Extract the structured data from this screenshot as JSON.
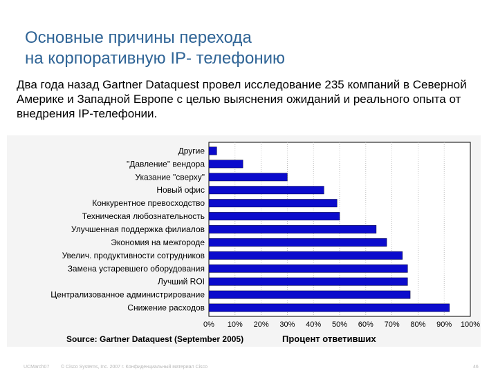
{
  "slide": {
    "title_line1": "Основные причины перехода",
    "title_line2": "на корпоративную IP- телефонию",
    "body": "Два года назад Gartner Dataquest провел исследование 235 компаний в Северной  Америке и Западной Европе с целью выяснения ожиданий и реального опыта от внедрения IP-телефонии."
  },
  "chart_data": {
    "type": "bar",
    "orientation": "horizontal",
    "categories": [
      "Другие",
      "\"Давление\" вендора",
      "Указание \"сверху\"",
      "Новый офис",
      "Конкурентное превосходство",
      "Техническая любознательность",
      "Улучшенная поддержка филиалов",
      "Экономия на межгороде",
      "Увелич. продуктивности сотрудников",
      "Замена устаревшего оборудования",
      "Лучший ROI",
      "Централизованное администрирование",
      "Снижение расходов"
    ],
    "values": [
      3,
      13,
      30,
      44,
      49,
      50,
      64,
      68,
      74,
      76,
      76,
      77,
      92
    ],
    "xlim": [
      0,
      100
    ],
    "x_ticks": [
      "0%",
      "10%",
      "20%",
      "30%",
      "40%",
      "50%",
      "60%",
      "70%",
      "80%",
      "90%",
      "100%"
    ],
    "xlabel": "Процент ответивших",
    "source": "Source: Gartner Dataquest (September 2005)",
    "bar_color": "#0b0bcc",
    "grid": true
  },
  "footer": {
    "left": "UCMarch07",
    "center": "© Cisco Systems, Inc. 2007 г. Конфиденциальный материал Cisco",
    "page": "46"
  }
}
